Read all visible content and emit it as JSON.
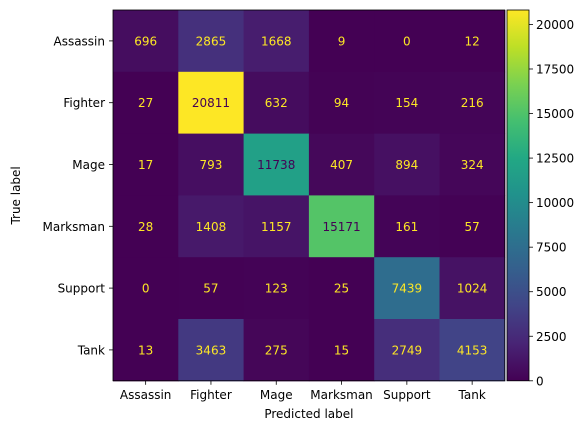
{
  "chart_data": {
    "type": "heatmap",
    "title": "",
    "xlabel": "Predicted label",
    "ylabel": "True label",
    "x_categories": [
      "Assassin",
      "Fighter",
      "Mage",
      "Marksman",
      "Support",
      "Tank"
    ],
    "y_categories": [
      "Assassin",
      "Fighter",
      "Mage",
      "Marksman",
      "Support",
      "Tank"
    ],
    "values": [
      [
        696,
        2865,
        1668,
        9,
        0,
        12
      ],
      [
        27,
        20811,
        632,
        94,
        154,
        216
      ],
      [
        17,
        793,
        11738,
        407,
        894,
        324
      ],
      [
        28,
        1408,
        1157,
        15171,
        161,
        57
      ],
      [
        0,
        57,
        123,
        25,
        7439,
        1024
      ],
      [
        13,
        3463,
        275,
        15,
        2749,
        4153
      ]
    ],
    "colormap": "viridis",
    "vmin": 0,
    "vmax": 20811,
    "colorbar_ticks": [
      0,
      2500,
      5000,
      7500,
      10000,
      12500,
      15000,
      17500,
      20000
    ],
    "text_color_light": "#fde725",
    "text_color_dark": "#440154"
  }
}
